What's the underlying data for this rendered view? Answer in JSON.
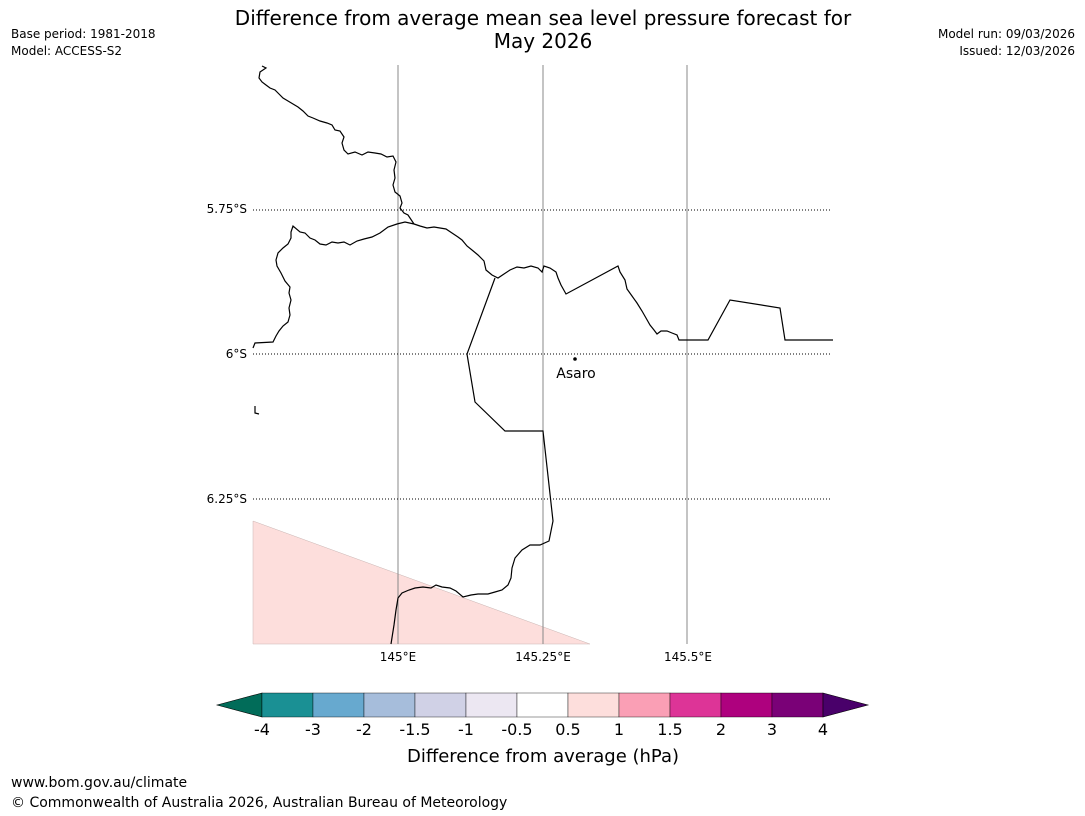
{
  "title_line1": "Difference from average mean sea level pressure forecast for",
  "title_line2": "May 2026",
  "base_period": "Base period: 1981-2018",
  "model": "Model: ACCESS-S2",
  "model_run": "Model run: 09/03/2026",
  "issued": "Issued: 12/03/2026",
  "map": {
    "lon_labels": [
      "145°E",
      "145.25°E",
      "145.5°E"
    ],
    "lat_labels": [
      "5.75°S",
      "6°S",
      "6.25°S"
    ],
    "place_label": "Asaro"
  },
  "colorbar": {
    "label": "Difference from average (hPa)",
    "ticks": [
      "-4",
      "-3",
      "-2",
      "-1.5",
      "-1",
      "-0.5",
      "0.5",
      "1",
      "1.5",
      "2",
      "3",
      "4"
    ],
    "colors": [
      "#1a9094",
      "#67a9cf",
      "#a6bddb",
      "#d0d1e6",
      "#ece7f2",
      "#ffffff",
      "#fddedc",
      "#fa9fb5",
      "#dd3497",
      "#ae017e",
      "#7a0177"
    ],
    "under_color": "#016c59",
    "over_color": "#49006a",
    "shaded_region_color": "#fddedc"
  },
  "footer_url": "www.bom.gov.au/climate",
  "footer_copyright": "© Commonwealth of Australia 2026, Australian Bureau of Meteorology"
}
